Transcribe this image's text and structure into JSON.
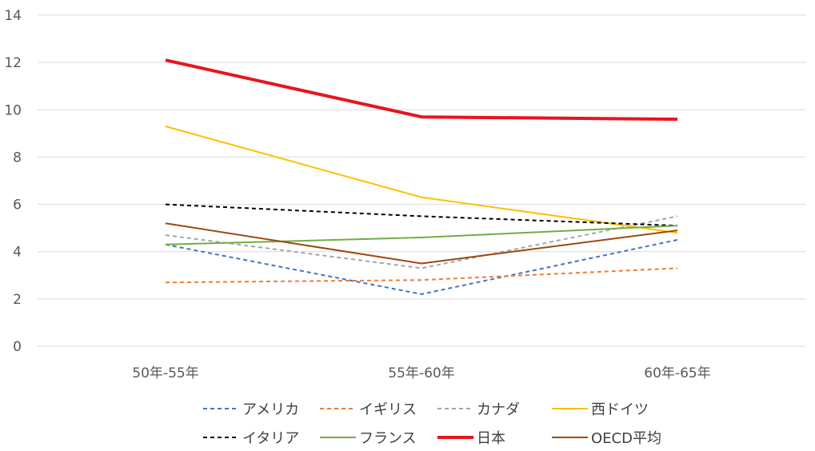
{
  "chart_data": {
    "type": "line",
    "title": "",
    "xlabel": "",
    "ylabel": "",
    "categories": [
      "50年-55年",
      "55年-60年",
      "60年-65年"
    ],
    "ylim": [
      0,
      14
    ],
    "yticks": [
      0,
      2,
      4,
      6,
      8,
      10,
      12,
      14
    ],
    "grid": true,
    "legend_position": "bottom",
    "series": [
      {
        "name": "アメリカ",
        "values": [
          4.3,
          2.2,
          4.5
        ],
        "color": "#4472c4",
        "dash": "dashed",
        "width": "normal"
      },
      {
        "name": "イギリス",
        "values": [
          2.7,
          2.8,
          3.3
        ],
        "color": "#ed7d31",
        "dash": "dashed",
        "width": "normal"
      },
      {
        "name": "カナダ",
        "values": [
          4.7,
          3.3,
          5.5
        ],
        "color": "#a5a5a5",
        "dash": "dashed",
        "width": "normal"
      },
      {
        "name": "西ドイツ",
        "values": [
          9.3,
          6.3,
          4.8
        ],
        "color": "#ffc000",
        "dash": "solid",
        "width": "normal"
      },
      {
        "name": "イタリア",
        "values": [
          6.0,
          5.5,
          5.1
        ],
        "color": "#000000",
        "dash": "dashed",
        "width": "normal"
      },
      {
        "name": "フランス",
        "values": [
          4.3,
          4.6,
          5.1
        ],
        "color": "#70ad47",
        "dash": "solid",
        "width": "normal"
      },
      {
        "name": "日本",
        "values": [
          12.1,
          9.7,
          9.6
        ],
        "color": "#e8141e",
        "dash": "solid",
        "width": "thick"
      },
      {
        "name": "OECD平均",
        "values": [
          5.2,
          3.5,
          4.9
        ],
        "color": "#9e480e",
        "dash": "solid",
        "width": "normal"
      }
    ]
  }
}
